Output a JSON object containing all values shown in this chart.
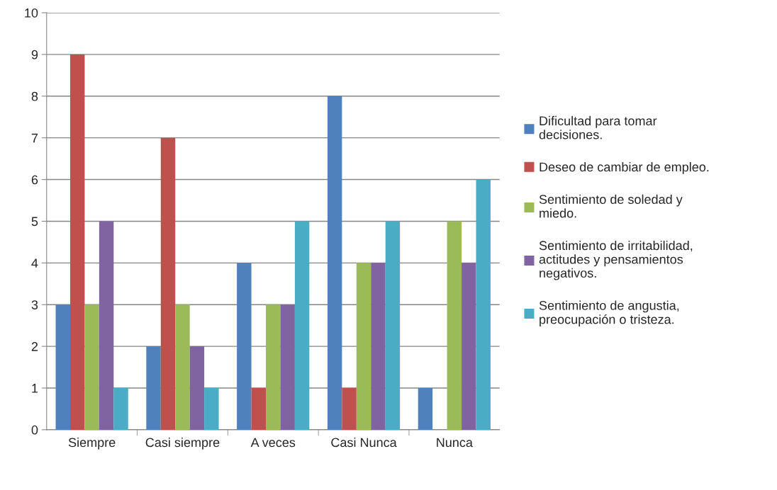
{
  "chart_data": {
    "type": "bar",
    "categories": [
      "Siempre",
      "Casi siempre",
      "A veces",
      "Casi Nunca",
      "Nunca"
    ],
    "series": [
      {
        "name": "Dificultad para tomar decisiones.",
        "color": "#4f81bd",
        "values": [
          3,
          2,
          4,
          8,
          1
        ]
      },
      {
        "name": "Deseo de cambiar de empleo.",
        "color": "#c0504d",
        "values": [
          9,
          7,
          1,
          1,
          0
        ]
      },
      {
        "name": "Sentimiento de soledad y miedo.",
        "color": "#9bbb59",
        "values": [
          3,
          3,
          3,
          4,
          5
        ]
      },
      {
        "name": "Sentimiento de irritabilidad, actitudes y pensamientos negativos.",
        "color": "#8064a2",
        "values": [
          5,
          2,
          3,
          4,
          4
        ]
      },
      {
        "name": "Sentimiento de angustia, preocupación o tristeza.",
        "color": "#4bacc6",
        "values": [
          1,
          1,
          5,
          5,
          6
        ]
      }
    ],
    "ylim": [
      0,
      10
    ],
    "yticks": [
      0,
      1,
      2,
      3,
      4,
      5,
      6,
      7,
      8,
      9,
      10
    ],
    "grid": "y",
    "legend": "right"
  }
}
